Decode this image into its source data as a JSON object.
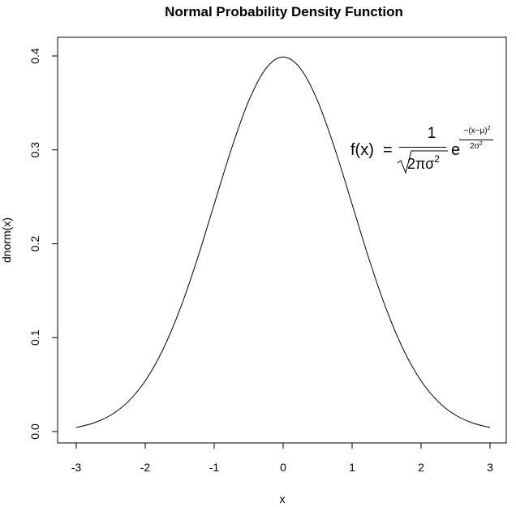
{
  "chart_data": {
    "type": "line",
    "title": "Normal Probability Density Function",
    "xlabel": "x",
    "ylabel": "dnorm(x)",
    "xlim": [
      -3,
      3
    ],
    "ylim": [
      0,
      0.4
    ],
    "xticks": [
      "-3",
      "-2",
      "-1",
      "0",
      "1",
      "2",
      "3"
    ],
    "yticks": [
      "0.0",
      "0.1",
      "0.2",
      "0.3",
      "0.4"
    ],
    "grid": false,
    "line_color": "#000000",
    "series": [
      {
        "x": [
          -3,
          -2.75,
          -2.5,
          -2.25,
          -2,
          -1.75,
          -1.5,
          -1.25,
          -1,
          -0.75,
          -0.5,
          -0.25,
          0,
          0.25,
          0.5,
          0.75,
          1,
          1.25,
          1.5,
          1.75,
          2,
          2.25,
          2.5,
          2.75,
          3
        ],
        "y": [
          0.0044,
          0.0091,
          0.0175,
          0.0317,
          0.054,
          0.0863,
          0.1295,
          0.1826,
          0.242,
          0.3011,
          0.3521,
          0.3867,
          0.3989,
          0.3867,
          0.3521,
          0.3011,
          0.242,
          0.1826,
          0.1295,
          0.0863,
          0.054,
          0.0317,
          0.0175,
          0.0091,
          0.0044
        ]
      }
    ],
    "annotation": {
      "lhs": "f(x)",
      "eq": "=",
      "numerator": "1",
      "denominator": "2πσ",
      "power": "2",
      "base": "e",
      "exponent_numerator": "−(x−μ)",
      "exponent_denominator": "2σ"
    }
  }
}
